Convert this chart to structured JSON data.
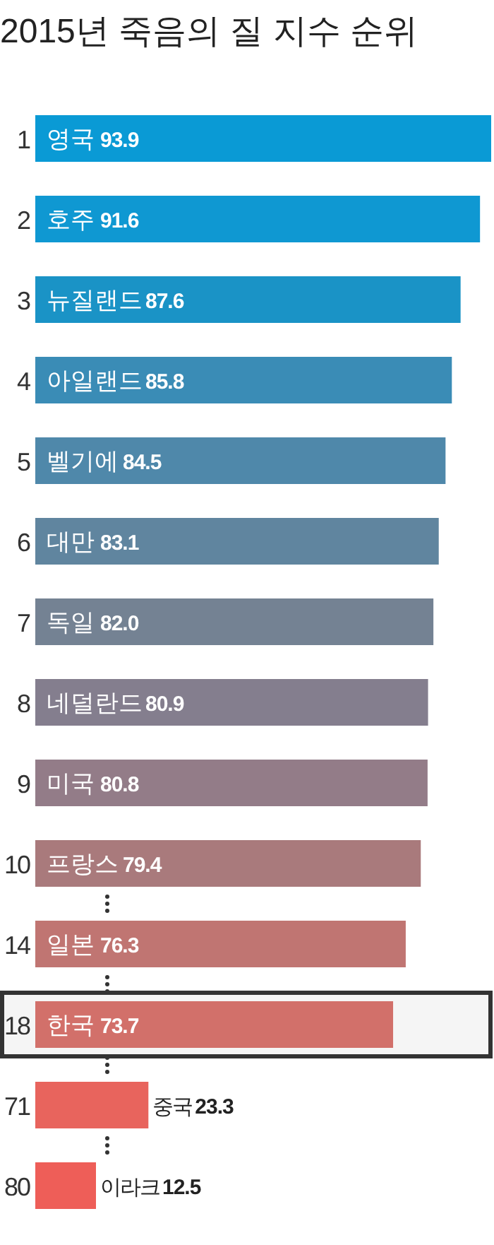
{
  "chart_data": {
    "type": "bar",
    "orientation": "horizontal",
    "title": "2015년 죽음의 질 지수 순위",
    "categories": [
      "영국",
      "호주",
      "뉴질랜드",
      "아일랜드",
      "벨기에",
      "대만",
      "독일",
      "네덜란드",
      "미국",
      "프랑스",
      "일본",
      "한국",
      "중국",
      "이라크"
    ],
    "values": [
      93.9,
      91.6,
      87.6,
      85.8,
      84.5,
      83.1,
      82.0,
      80.9,
      80.8,
      79.4,
      76.3,
      73.7,
      23.3,
      12.5
    ],
    "value_labels": [
      "93.9",
      "91.6",
      "87.6",
      "85.8",
      "84.5",
      "83.1",
      "82.0",
      "80.9",
      "80.8",
      "79.4",
      "76.3",
      "73.7",
      "23.3",
      "12.5"
    ],
    "colors": [
      "#0a9ad5",
      "#0f98d2",
      "#1a93c6",
      "#3a8cb6",
      "#4f88aa",
      "#60859f",
      "#748293",
      "#847e8e",
      "#937c88",
      "#a97a7c",
      "#c07572",
      "#d2706a",
      "#e8645d",
      "#ee5e58"
    ],
    "annotations": [
      "1",
      "2",
      "3",
      "4",
      "5",
      "6",
      "7",
      "8",
      "9",
      "10",
      "14",
      "18",
      "71",
      "80"
    ],
    "bands": [
      {
        "axis": "y",
        "from": "한국",
        "to": "한국",
        "color": "#333333"
      }
    ]
  }
}
